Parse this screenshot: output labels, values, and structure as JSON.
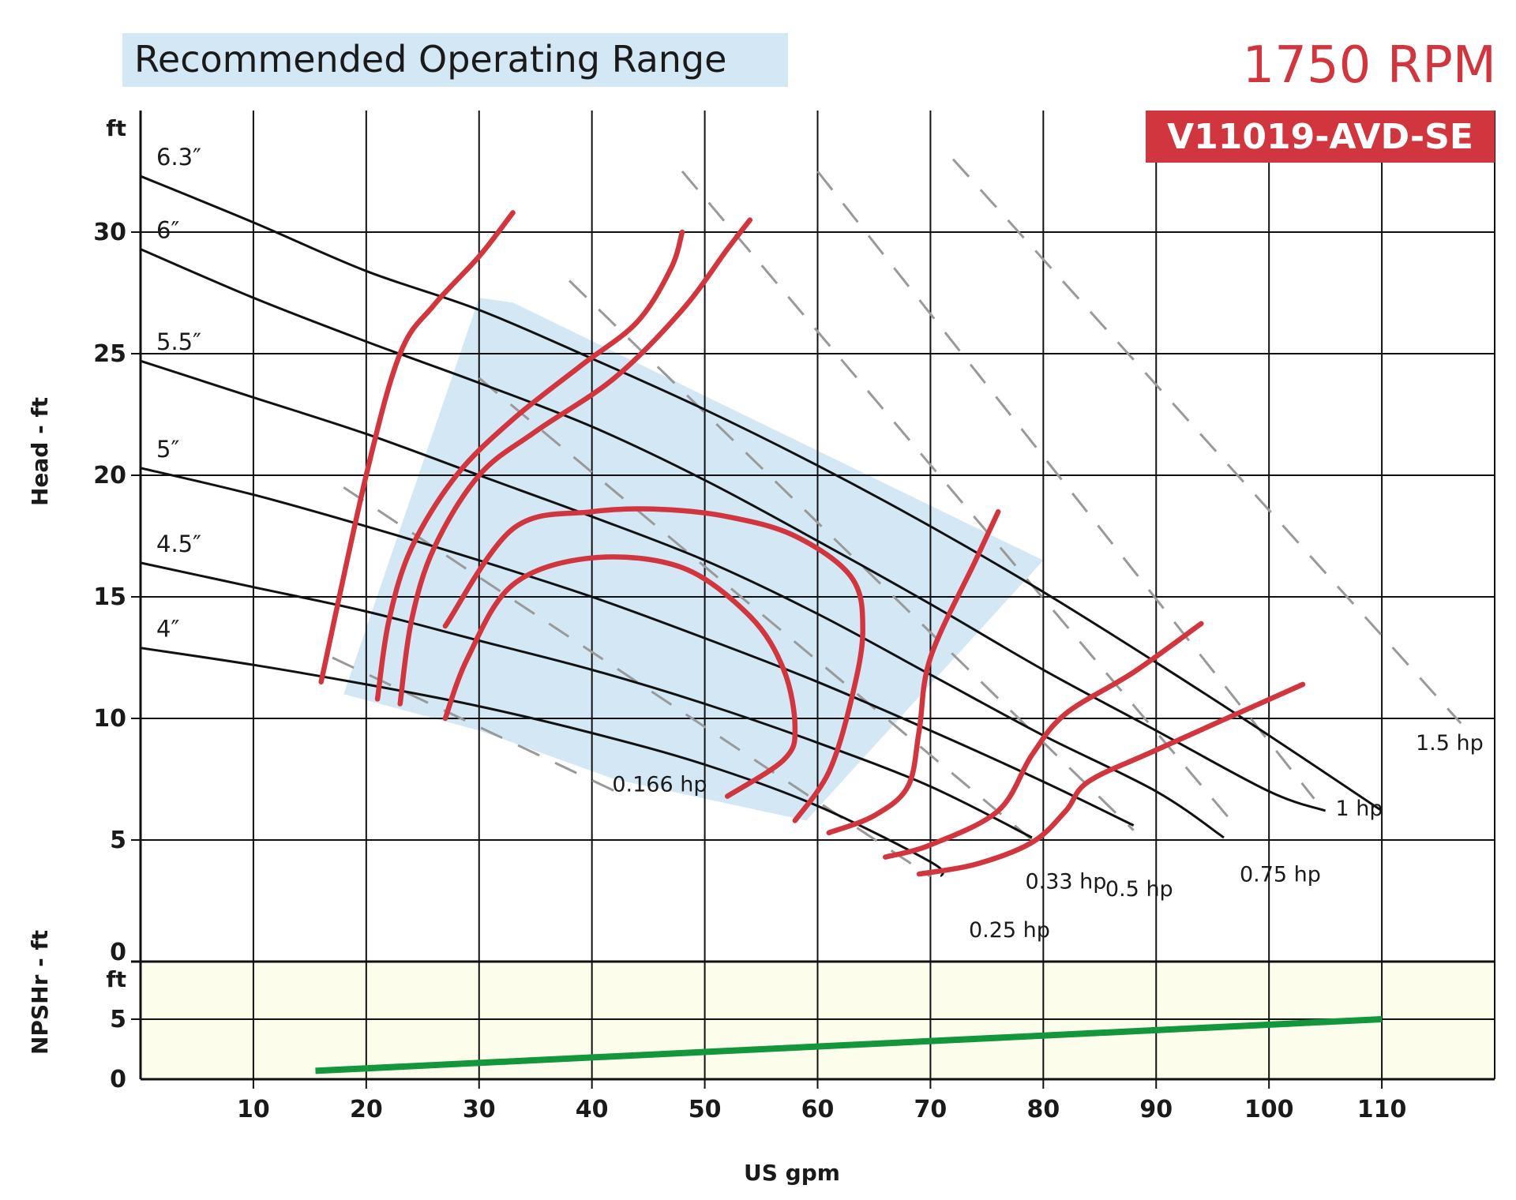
{
  "chart_data": {
    "type": "line",
    "title": "Recommended Operating Range",
    "rpm_label": "1750 RPM",
    "model_label": "V11019-AVD-SE",
    "xlabel": "US gpm",
    "ylabel": "Head - ft",
    "y_unit": "ft",
    "x_ticks": [
      "10",
      "20",
      "30",
      "40",
      "50",
      "60",
      "70",
      "80",
      "90",
      "100",
      "110"
    ],
    "y_ticks": [
      "0",
      "5",
      "10",
      "15",
      "20",
      "25",
      "30"
    ],
    "xlim": [
      0,
      120
    ],
    "ylim": [
      0,
      35
    ],
    "grid": true,
    "colors": {
      "impeller": "#111111",
      "efficiency": "#d1353e",
      "power": "#999999",
      "range_fill": "#d4e7f5",
      "npsh_line": "#14963c",
      "npsh_fill": "#fdfdec",
      "badge": "#d1353e"
    },
    "recommended_operating_range": {
      "label": "Recommended Operating Range",
      "polygon": [
        [
          18,
          11
        ],
        [
          30,
          27.3
        ],
        [
          33,
          27.1
        ],
        [
          80,
          16.5
        ],
        [
          59,
          5.8
        ],
        [
          42,
          7.5
        ],
        [
          30,
          9.5
        ]
      ]
    },
    "impeller_curves": [
      {
        "name": "6.3″",
        "x": [
          0,
          10,
          20,
          30,
          40,
          50,
          60,
          70,
          80,
          90,
          100,
          110
        ],
        "y": [
          32.3,
          30.4,
          28.4,
          26.8,
          24.8,
          22.7,
          20.4,
          17.9,
          15.2,
          12.3,
          9.3,
          6.2
        ]
      },
      {
        "name": "6″",
        "x": [
          0,
          10,
          20,
          30,
          40,
          50,
          60,
          70,
          80,
          90,
          100,
          105
        ],
        "y": [
          29.3,
          27.3,
          25.5,
          23.8,
          22.0,
          19.8,
          17.3,
          14.7,
          12.0,
          9.5,
          7.0,
          6.2
        ]
      },
      {
        "name": "5.5″",
        "x": [
          0,
          10,
          20,
          30,
          40,
          50,
          60,
          70,
          80,
          90,
          96
        ],
        "y": [
          24.7,
          23.2,
          21.7,
          20.0,
          18.3,
          16.5,
          14.3,
          11.8,
          9.3,
          7.0,
          5.1
        ]
      },
      {
        "name": "5″",
        "x": [
          0,
          10,
          20,
          30,
          40,
          50,
          60,
          70,
          80,
          88
        ],
        "y": [
          20.3,
          19.2,
          17.9,
          16.5,
          15.0,
          13.3,
          11.5,
          9.5,
          7.4,
          5.6
        ]
      },
      {
        "name": "4.5″",
        "x": [
          0,
          10,
          20,
          30,
          40,
          50,
          60,
          70,
          79
        ],
        "y": [
          16.4,
          15.4,
          14.4,
          13.2,
          12.0,
          10.6,
          9.0,
          7.2,
          5.1
        ]
      },
      {
        "name": "4″",
        "x": [
          0,
          10,
          20,
          30,
          40,
          50,
          60,
          70,
          71
        ],
        "y": [
          12.9,
          12.2,
          11.4,
          10.5,
          9.4,
          8.1,
          6.4,
          4.1,
          3.5
        ]
      }
    ],
    "power_lines": [
      {
        "label": "0.166 hp",
        "x": [
          17,
          43
        ],
        "y": [
          12.5,
          6.8
        ]
      },
      {
        "label": "0.25 hp",
        "x": [
          18,
          70
        ],
        "y": [
          19.5,
          3.5
        ]
      },
      {
        "label": "0.33 hp",
        "x": [
          30,
          79
        ],
        "y": [
          24.0,
          5.0
        ]
      },
      {
        "label": "0.5 hp",
        "x": [
          38,
          88
        ],
        "y": [
          28.0,
          5.4
        ]
      },
      {
        "label": "0.75 hp",
        "x": [
          48,
          97
        ],
        "y": [
          32.5,
          5.6
        ]
      },
      {
        "label": "1 hp",
        "x": [
          60,
          104
        ],
        "y": [
          32.5,
          6.7
        ]
      },
      {
        "label": "1.5 hp",
        "x": [
          72,
          117
        ],
        "y": [
          33.0,
          9.8
        ]
      }
    ],
    "efficiency_curves": [
      {
        "x": [
          16,
          20,
          23,
          26,
          30,
          33
        ],
        "y": [
          11.5,
          20,
          25,
          27,
          29,
          30.8
        ]
      },
      {
        "x": [
          21,
          22,
          24,
          28,
          33,
          39,
          44,
          47,
          48
        ],
        "y": [
          10.8,
          14,
          17,
          20,
          22.3,
          24.5,
          26.3,
          28.5,
          30
        ]
      },
      {
        "x": [
          23,
          24,
          26,
          30,
          35,
          42,
          48,
          52,
          54
        ],
        "y": [
          10.6,
          14,
          17,
          20,
          21.8,
          24.0,
          26.8,
          29.3,
          30.5
        ]
      },
      {
        "x": [
          27,
          29,
          33,
          40,
          48,
          54,
          57,
          58,
          57,
          52
        ],
        "y": [
          10.0,
          12.5,
          15.5,
          16.6,
          16.2,
          14.2,
          12.0,
          9.6,
          8.3,
          6.8
        ]
      },
      {
        "x": [
          58,
          61,
          63,
          64,
          63,
          58,
          52,
          46,
          40,
          33,
          27
        ],
        "y": [
          5.8,
          7.8,
          10.8,
          13.6,
          15.8,
          17.5,
          18.3,
          18.6,
          18.5,
          17.8,
          13.8
        ]
      },
      {
        "x": [
          61,
          65,
          68,
          69,
          70,
          74,
          76
        ],
        "y": [
          5.3,
          6.0,
          7.2,
          9.5,
          12.5,
          16.5,
          18.5
        ]
      },
      {
        "x": [
          66,
          70,
          76,
          79,
          82,
          88,
          94
        ],
        "y": [
          4.3,
          4.8,
          6.2,
          8.5,
          10.2,
          11.9,
          13.9
        ]
      },
      {
        "x": [
          69,
          74,
          79,
          82,
          84,
          90,
          103
        ],
        "y": [
          3.6,
          4.0,
          4.9,
          6.2,
          7.4,
          8.7,
          11.4
        ]
      }
    ],
    "npshr": {
      "ylabel": "NPSHr - ft",
      "y_unit": "ft",
      "y_ticks": [
        "0",
        "5"
      ],
      "ylim": [
        0,
        10
      ],
      "x": [
        15.5,
        110
      ],
      "y": [
        0.7,
        5.0
      ]
    }
  }
}
